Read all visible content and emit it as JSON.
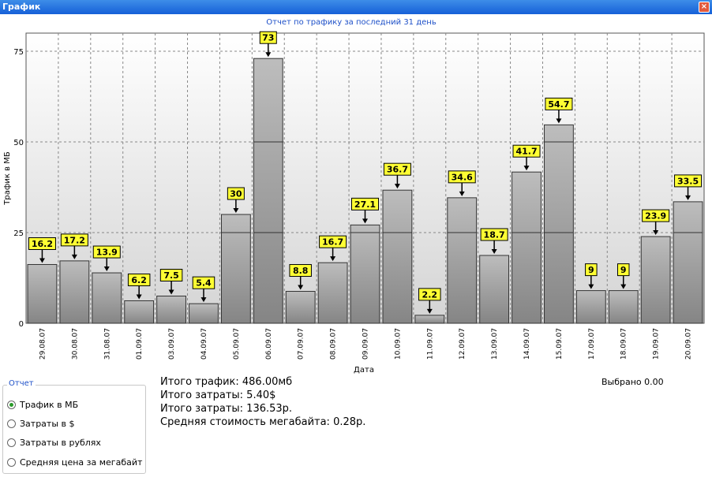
{
  "window": {
    "title": "График",
    "close_glyph": "×"
  },
  "chart_data": {
    "type": "bar",
    "title": "Отчет по трафику за последний 31 день",
    "xlabel": "Дата",
    "ylabel": "Трафик в МБ",
    "ylim": [
      0,
      80
    ],
    "yticks": [
      0,
      25,
      50,
      75
    ],
    "grid": true,
    "categories": [
      "29.08.07",
      "30.08.07",
      "31.08.07",
      "01.09.07",
      "03.09.07",
      "04.09.07",
      "05.09.07",
      "06.09.07",
      "07.09.07",
      "08.09.07",
      "09.09.07",
      "10.09.07",
      "11.09.07",
      "12.09.07",
      "13.09.07",
      "14.09.07",
      "15.09.07",
      "17.09.07",
      "18.09.07",
      "19.09.07",
      "20.09.07"
    ],
    "values": [
      16.2,
      17.2,
      13.9,
      6.2,
      7.5,
      5.4,
      30,
      73,
      8.8,
      16.7,
      27.1,
      36.7,
      2.2,
      34.6,
      18.7,
      41.7,
      54.7,
      9,
      9,
      23.9,
      33.5
    ],
    "value_labels": [
      "16.2",
      "17.2",
      "13.9",
      "6.2",
      "7.5",
      "5.4",
      "30",
      "73",
      "8.8",
      "16.7",
      "27.1",
      "36.7",
      "2.2",
      "34.6",
      "18.7",
      "41.7",
      "54.7",
      "9",
      "9",
      "23.9",
      "33.5"
    ]
  },
  "report": {
    "legend_title": "Отчет",
    "options": [
      {
        "label": "Трафик в МБ",
        "selected": true
      },
      {
        "label": "Затраты в $",
        "selected": false
      },
      {
        "label": "Затраты в рублях",
        "selected": false
      },
      {
        "label": "Средняя цена за мегабайт",
        "selected": false
      }
    ]
  },
  "totals": {
    "traffic": "Итого трафик: 486.00мб",
    "cost_usd": "Итого затраты: 5.40$",
    "cost_rub": "Итого затраты: 136.53р.",
    "avg_price": "Средняя стоимость мегабайта: 0.28р."
  },
  "selected_text": "Выбрано 0.00"
}
